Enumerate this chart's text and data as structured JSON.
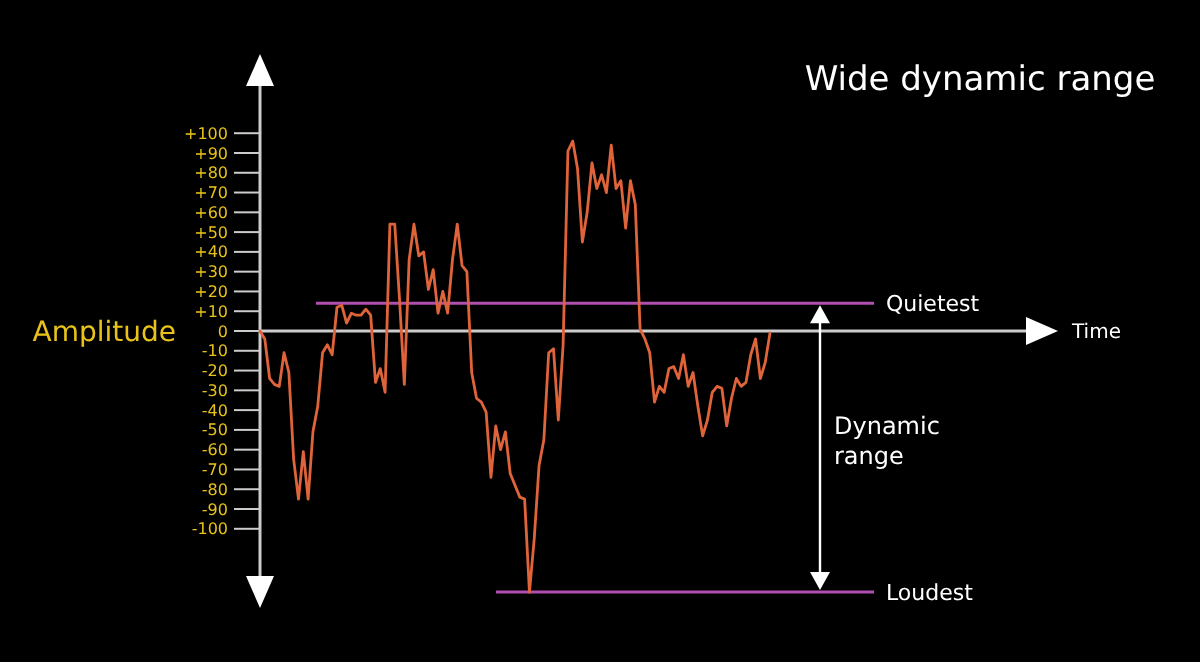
{
  "chart_data": {
    "type": "line",
    "title": "Wide dynamic range",
    "ylabel": "Amplitude",
    "categories": [
      null,
      null,
      null,
      null,
      null,
      null,
      null,
      null,
      null,
      null,
      null,
      null,
      null,
      null,
      null,
      null,
      null,
      null,
      null,
      null,
      null,
      null,
      null,
      null,
      null,
      null,
      null,
      null,
      null,
      null,
      null,
      null,
      null,
      null,
      null,
      null,
      null,
      null,
      null,
      null,
      null,
      null,
      null,
      null,
      null,
      null,
      null,
      null,
      null,
      null,
      null,
      null,
      null,
      null,
      null,
      null,
      null,
      null,
      null,
      null,
      null,
      null,
      null,
      null,
      null,
      null,
      null,
      null,
      null,
      null,
      null,
      null,
      null,
      null,
      null,
      null,
      null,
      null,
      null,
      null,
      null,
      null,
      null,
      null,
      null,
      null,
      null,
      null,
      null,
      null,
      null,
      null,
      null,
      null,
      null,
      null,
      null,
      null,
      null,
      null,
      null,
      null,
      null,
      null,
      null,
      null,
      null
    ],
    "series": [
      {
        "color": "#e0643a",
        "values": [
          0,
          -4,
          -24,
          -27,
          -28,
          -11,
          -21,
          -65,
          -85,
          -61,
          -85,
          -51,
          -38,
          -11,
          -7,
          -12,
          12,
          13,
          4,
          9,
          8,
          8,
          11,
          8,
          -26,
          -19,
          -31,
          54,
          54,
          16,
          -27,
          36,
          54,
          38,
          40,
          21,
          31,
          9,
          20,
          9,
          36,
          54,
          33,
          30,
          -21,
          -34,
          -36,
          -41,
          -74,
          -48,
          -60,
          -51,
          -72,
          -78,
          -84,
          -85,
          -132,
          -105,
          -68,
          -55,
          -11,
          -9,
          -45,
          -7,
          91,
          96,
          82,
          45,
          60,
          85,
          72,
          79,
          70,
          94,
          72,
          76,
          52,
          76,
          64,
          1,
          -4,
          -11,
          -36,
          -28,
          -31,
          -19,
          -18,
          -24,
          -12,
          -28,
          -21,
          -38,
          -53,
          -45,
          -31,
          -28,
          -29,
          -48,
          -34,
          -24,
          -28,
          -26,
          -12,
          -4,
          -24,
          -16,
          -1
        ]
      }
    ],
    "ylim": [
      -136,
      136
    ],
    "yticks": [
      {
        "value": 100,
        "label": "+100"
      },
      {
        "value": 90,
        "label": "+90"
      },
      {
        "value": 80,
        "label": "+80"
      },
      {
        "value": 70,
        "label": "+70"
      },
      {
        "value": 60,
        "label": "+60"
      },
      {
        "value": 50,
        "label": "+50"
      },
      {
        "value": 40,
        "label": "+40"
      },
      {
        "value": 30,
        "label": "+30"
      },
      {
        "value": 20,
        "label": "+20"
      },
      {
        "value": 10,
        "label": "+10"
      },
      0,
      -10,
      -20,
      -30,
      -40,
      -50,
      -60,
      -70,
      -80,
      -90,
      -100
    ],
    "tick_labels": "y",
    "ref_lines": [
      {
        "axis": "y",
        "value": 14,
        "label": "Quietest",
        "color": "#b04fb0"
      },
      {
        "axis": "y",
        "value": -132,
        "label": "Loudest",
        "color": "#b04fb0"
      }
    ],
    "annotations": [
      "Dynamic range",
      "Time"
    ]
  }
}
